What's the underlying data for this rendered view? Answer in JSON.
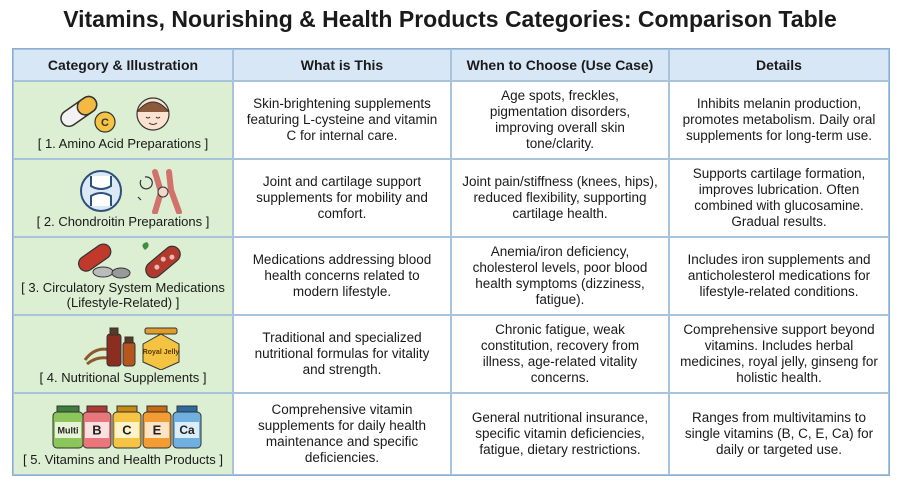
{
  "title": "Vitamins, Nourishing & Health Products Categories: Comparison Table",
  "table": {
    "headers": [
      "Category & Illustration",
      "What is This",
      "When to Choose (Use Case)",
      "Details"
    ],
    "rows": [
      {
        "category": "[ 1. Amino Acid Preparations ]",
        "icon_labels": [
          "C"
        ],
        "what": "Skin-brightening supplements featuring L-cysteine and vitamin C for internal care.",
        "when": "Age spots, freckles, pigmentation disorders, improving overall skin tone/clarity.",
        "details": "Inhibits melanin production, promotes metabolism. Daily oral supplements for long-term use."
      },
      {
        "category": "[ 2. Chondroitin Preparations ]",
        "icon_labels": [],
        "what": "Joint and cartilage support supplements for mobility and comfort.",
        "when": "Joint pain/stiffness (knees, hips), reduced flexibility, supporting cartilage health.",
        "details": "Supports cartilage formation, improves lubrication. Often combined with glucosamine. Gradual results."
      },
      {
        "category": "[ 3. Circulatory System Medications (Lifestyle-Related) ]",
        "icon_labels": [],
        "what": "Medications addressing blood health concerns related to modern lifestyle.",
        "when": "Anemia/iron deficiency, cholesterol levels, poor blood health symptoms (dizziness, fatigue).",
        "details": "Includes iron supplements and anticholesterol medications for lifestyle-related conditions."
      },
      {
        "category": "[ 4. Nutritional Supplements ]",
        "icon_labels": [
          "Royal Jelly"
        ],
        "what": "Traditional and specialized nutritional formulas for vitality and strength.",
        "when": "Chronic fatigue, weak constitution, recovery from illness, age-related vitality concerns.",
        "details": "Comprehensive support beyond vitamins. Includes herbal medicines, royal jelly, ginseng for holistic health."
      },
      {
        "category": "[ 5. Vitamins and Health Products ]",
        "icon_labels": [
          "Multi",
          "B",
          "C",
          "E",
          "Ca"
        ],
        "what": "Comprehensive vitamin supplements for daily health maintenance and specific deficiencies.",
        "when": "General nutritional insurance, specific vitamin deficiencies, fatigue, dietary restrictions.",
        "details": "Ranges from multivitamins to single vitamins (B, C, E, Ca) for daily or targeted use."
      }
    ]
  }
}
